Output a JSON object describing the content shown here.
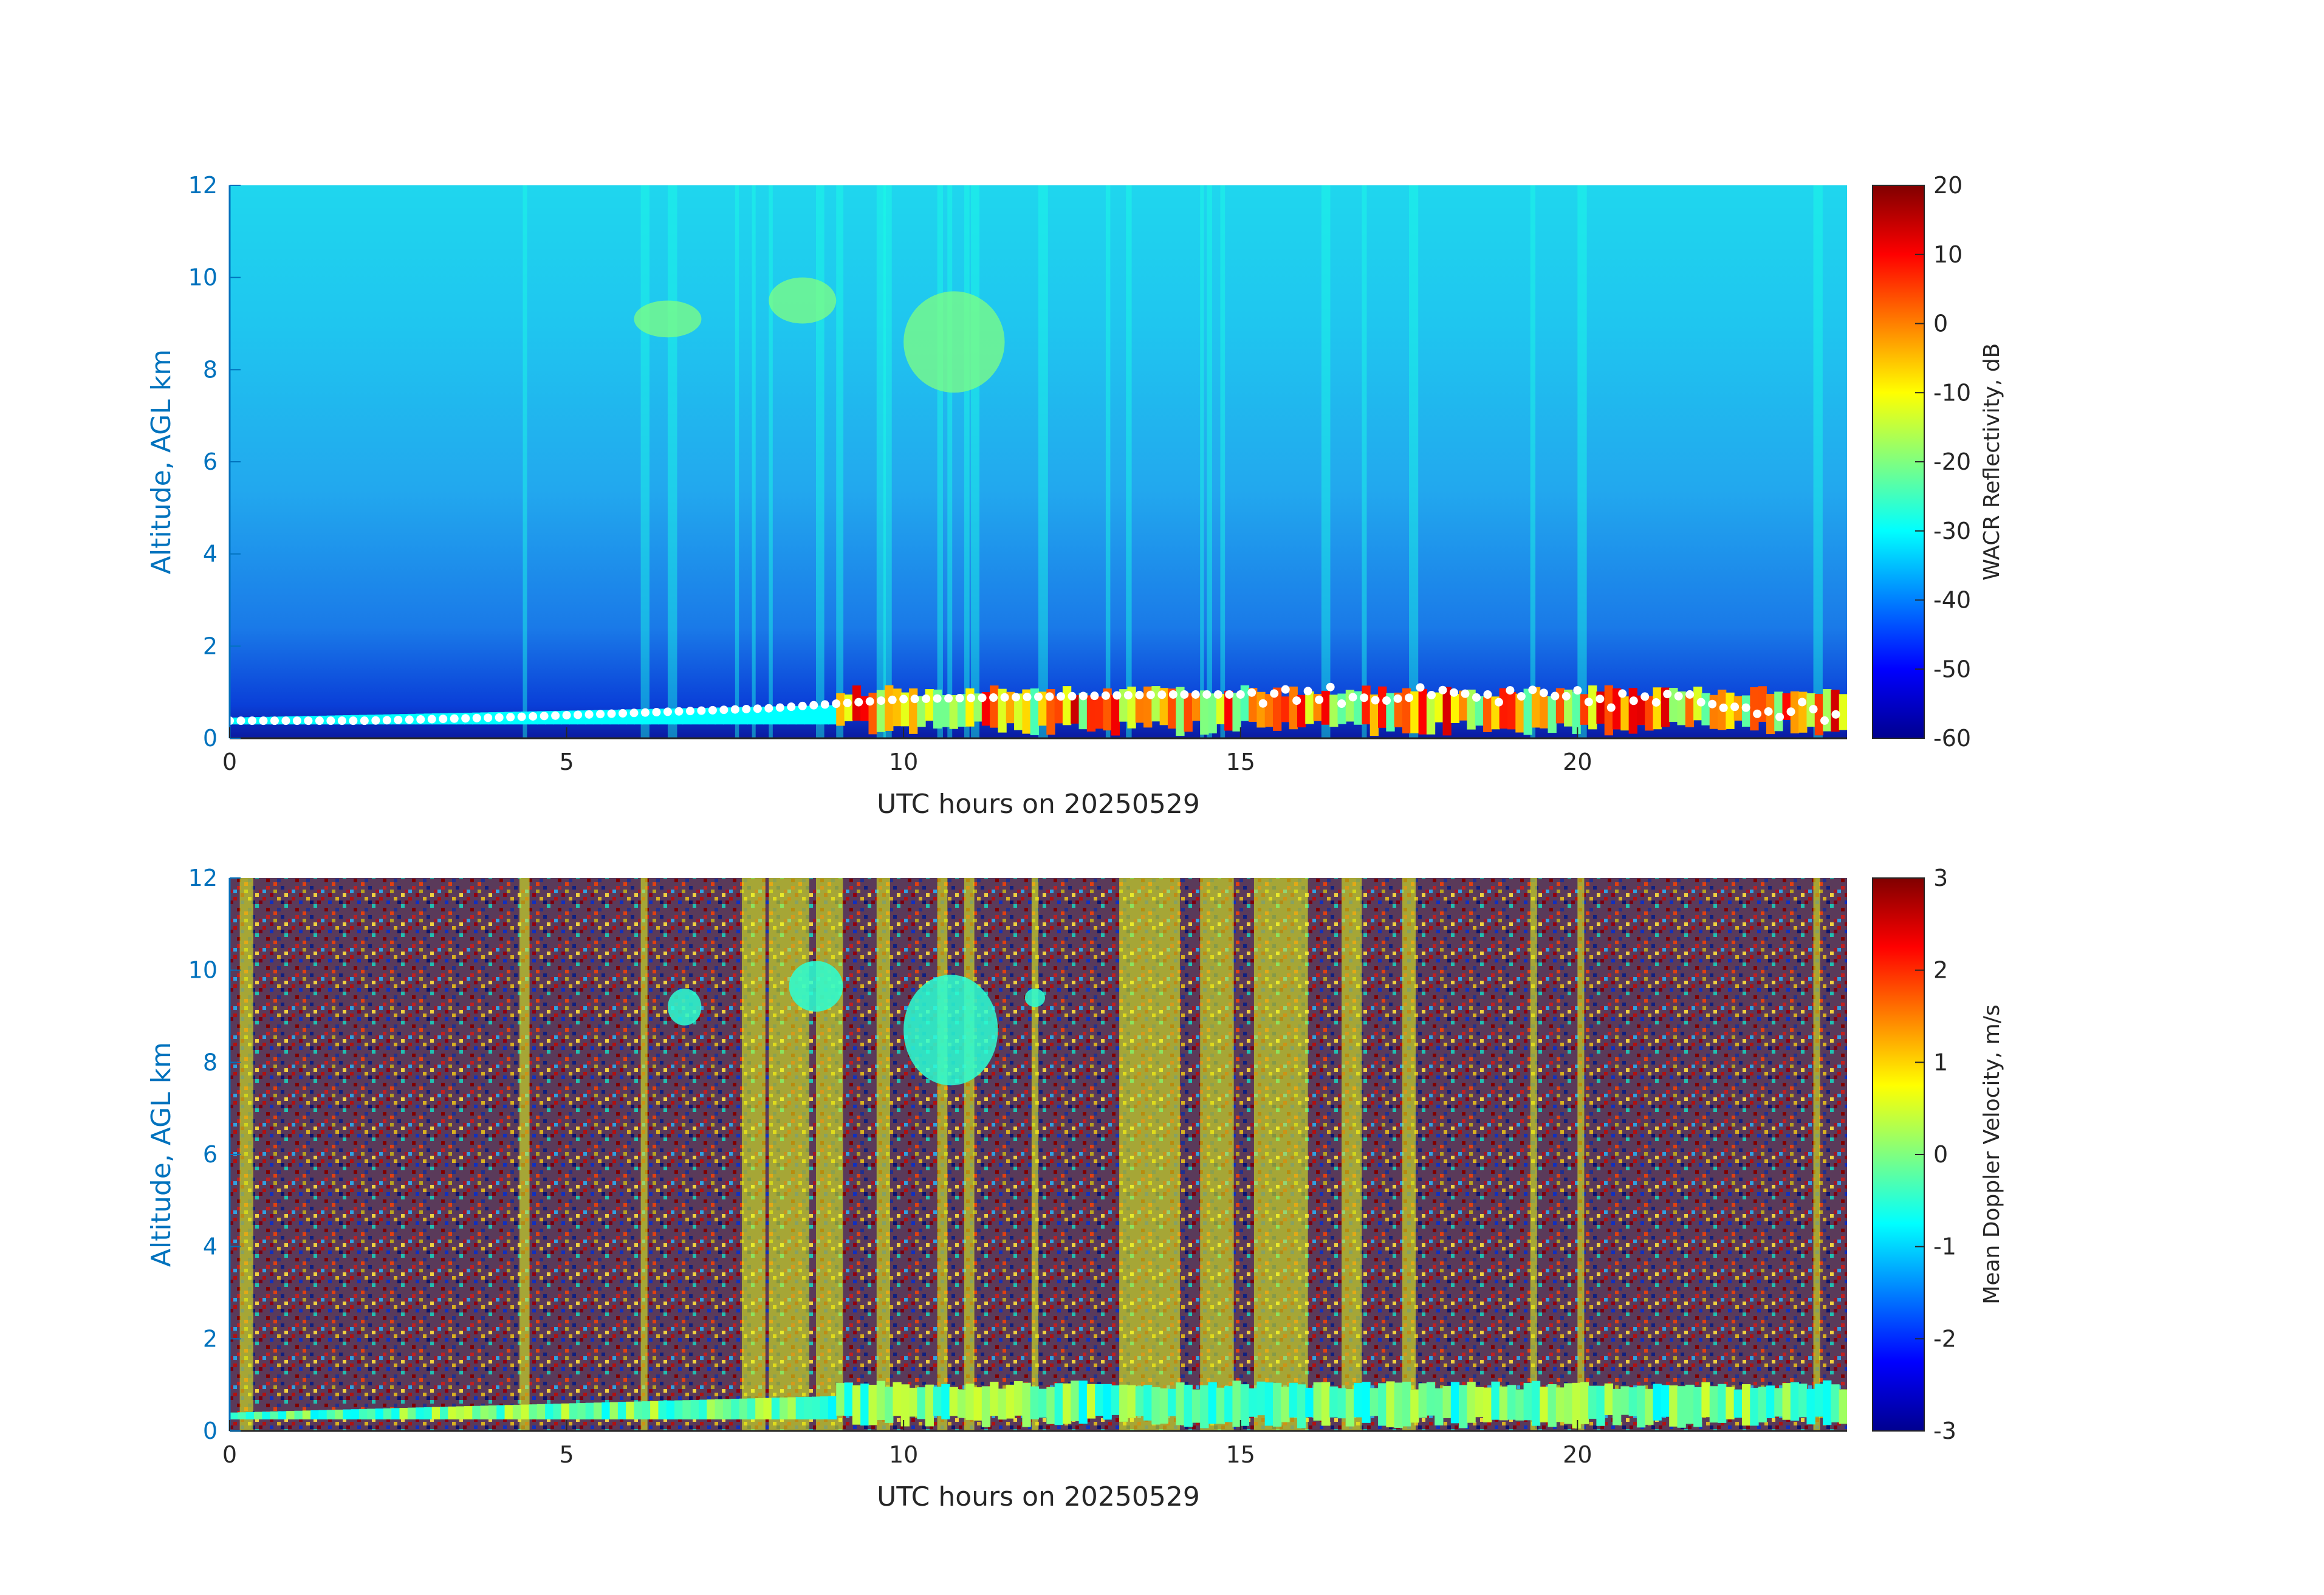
{
  "chart_data": [
    {
      "type": "heatmap",
      "title": "",
      "xlabel": "UTC hours on 20250529",
      "ylabel": "Altitude, AGL km",
      "xlim": [
        0,
        24
      ],
      "ylim": [
        0,
        12
      ],
      "xticks": [
        "0",
        "5",
        "10",
        "15",
        "20"
      ],
      "yticks": [
        "0",
        "2",
        "4",
        "6",
        "8",
        "10",
        "12"
      ],
      "colorbar": {
        "label": "WACR Reflectivity, dB",
        "range": [
          -60,
          20
        ],
        "ticks": [
          "20",
          "10",
          "0",
          "-10",
          "-20",
          "-30",
          "-40",
          "-50",
          "-60"
        ],
        "colormap": "jet"
      },
      "features": [
        {
          "description_value": "low cloud base layer",
          "x_start": 0,
          "x_end": 24,
          "altitude_km": [
            0.3,
            1.1
          ]
        },
        {
          "description_value": "upper cloud patch",
          "x": [
            6.0,
            7.0
          ],
          "altitude_km": [
            8.7,
            9.5
          ]
        },
        {
          "description_value": "upper cloud patch",
          "x": [
            8.0,
            9.0
          ],
          "altitude_km": [
            9.0,
            10.0
          ]
        },
        {
          "description_value": "upper cloud patch",
          "x": [
            10.0,
            11.5
          ],
          "altitude_km": [
            7.5,
            9.7
          ]
        }
      ],
      "ceilometer_cloud_base_km": [
        [
          0,
          0.38
        ],
        [
          2,
          0.38
        ],
        [
          4,
          0.45
        ],
        [
          6,
          0.55
        ],
        [
          8,
          0.65
        ],
        [
          10,
          0.85
        ],
        [
          12,
          0.9
        ],
        [
          14,
          0.95
        ],
        [
          16,
          0.95
        ],
        [
          18,
          0.9
        ],
        [
          20,
          0.85
        ],
        [
          22,
          0.8
        ],
        [
          24,
          0.5
        ]
      ]
    },
    {
      "type": "heatmap",
      "title": "",
      "xlabel": "UTC hours on 20250529",
      "ylabel": "Altitude, AGL km",
      "xlim": [
        0,
        24
      ],
      "ylim": [
        0,
        12
      ],
      "xticks": [
        "0",
        "5",
        "10",
        "15",
        "20"
      ],
      "yticks": [
        "0",
        "2",
        "4",
        "6",
        "8",
        "10",
        "12"
      ],
      "colorbar": {
        "label": "Mean Doppler Velocity, m/s",
        "range": [
          -3,
          3
        ],
        "ticks": [
          "3",
          "2",
          "1",
          "0",
          "-1",
          "-2",
          "-3"
        ],
        "colormap": "jet"
      }
    }
  ]
}
